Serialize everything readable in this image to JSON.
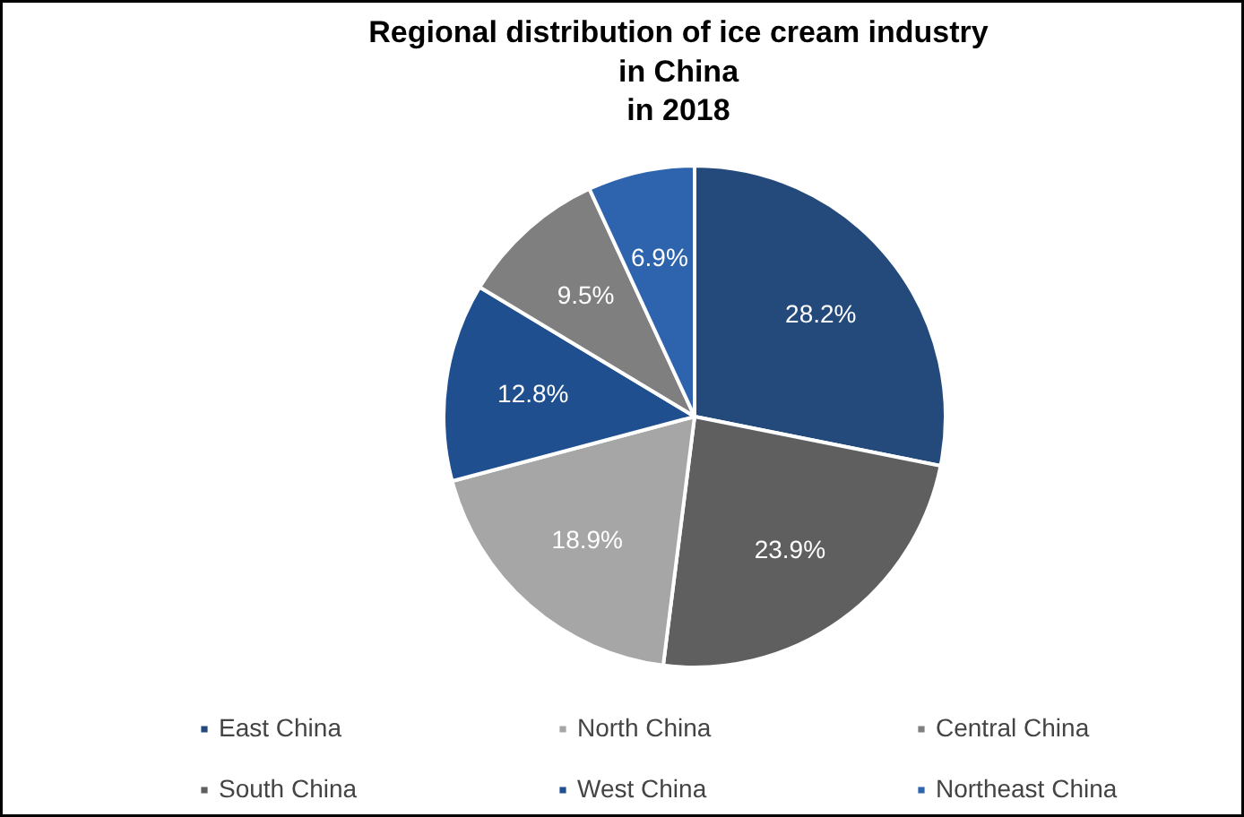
{
  "chart_data": {
    "type": "pie",
    "title": "Regional distribution of ice cream industry\nin China\nin 2018",
    "categories": [
      "East China",
      "South China",
      "North China",
      "West China",
      "Central China",
      "Northeast China"
    ],
    "values": [
      28.2,
      23.9,
      18.9,
      12.8,
      9.5,
      6.9
    ],
    "colors": [
      "#244a7c",
      "#5f5f5f",
      "#a6a6a6",
      "#1f4f8f",
      "#7f7f7f",
      "#2e64ad"
    ],
    "value_labels": [
      "28.2%",
      "23.9%",
      "18.9%",
      "12.8%",
      "9.5%",
      "6.9%"
    ],
    "legend": "bottom"
  }
}
